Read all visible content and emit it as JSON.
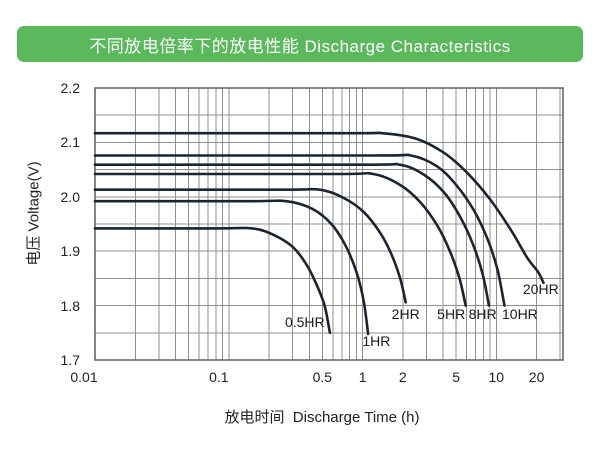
{
  "header": {
    "title": "不同放电倍率下的放电性能 Discharge Characteristics",
    "bg_color": "#5cb85c",
    "text_color": "#ffffff"
  },
  "chart_data": {
    "type": "line",
    "x_scale": "log",
    "xlabel": "放电时间  Discharge Time (h)",
    "ylabel": "电压 Voltage(V)",
    "xlim": [
      0.01,
      31.5
    ],
    "ylim": [
      1.7,
      2.2
    ],
    "y_grid_step": 0.05,
    "grid_color": "#8f8f8f",
    "border_color": "#5e5e5e",
    "curve_color": "#1c2430",
    "text_color": "#222222",
    "x_ticks": [
      {
        "label": "0.01",
        "value": 0.01,
        "dx": -11
      },
      {
        "label": "0.1",
        "value": 0.1,
        "dx": -10
      },
      {
        "label": "0.5",
        "value": 0.5,
        "dx": 0
      },
      {
        "label": "1",
        "value": 1,
        "dx": 0
      },
      {
        "label": "2",
        "value": 2,
        "dx": 0
      },
      {
        "label": "5",
        "value": 5,
        "dx": 0
      },
      {
        "label": "10",
        "value": 10,
        "dx": 0
      },
      {
        "label": "20",
        "value": 20,
        "dx": 0
      }
    ],
    "y_ticks": [
      {
        "label": "2.2",
        "value": 2.2
      },
      {
        "label": "2.1",
        "value": 2.1
      },
      {
        "label": "2.0",
        "value": 2.0
      },
      {
        "label": "1.9",
        "value": 1.9
      },
      {
        "label": "1.8",
        "value": 1.8
      },
      {
        "label": "1.7",
        "value": 1.7
      }
    ],
    "series": [
      {
        "name": "20HR",
        "points": [
          [
            0.01,
            2.117
          ],
          [
            0.8,
            2.117
          ],
          [
            1.4,
            2.117
          ],
          [
            2.5,
            2.107
          ],
          [
            4,
            2.082
          ],
          [
            6,
            2.045
          ],
          [
            9,
            1.995
          ],
          [
            13,
            1.937
          ],
          [
            17,
            1.888
          ],
          [
            20.5,
            1.862
          ],
          [
            22.5,
            1.842
          ]
        ]
      },
      {
        "name": "10HR",
        "points": [
          [
            0.01,
            2.076
          ],
          [
            1.2,
            2.076
          ],
          [
            2.3,
            2.076
          ],
          [
            3.6,
            2.056
          ],
          [
            5,
            2.022
          ],
          [
            6.8,
            1.975
          ],
          [
            8.6,
            1.922
          ],
          [
            10.2,
            1.866
          ],
          [
            11.5,
            1.8
          ]
        ]
      },
      {
        "name": "8HR",
        "points": [
          [
            0.01,
            2.059
          ],
          [
            1.0,
            2.059
          ],
          [
            1.9,
            2.059
          ],
          [
            2.9,
            2.04
          ],
          [
            4.1,
            2.007
          ],
          [
            5.4,
            1.962
          ],
          [
            6.7,
            1.912
          ],
          [
            7.9,
            1.858
          ],
          [
            8.8,
            1.8
          ]
        ]
      },
      {
        "name": "5HR",
        "points": [
          [
            0.01,
            2.042
          ],
          [
            0.6,
            2.042
          ],
          [
            1.2,
            2.042
          ],
          [
            1.9,
            2.022
          ],
          [
            2.7,
            1.99
          ],
          [
            3.6,
            1.948
          ],
          [
            4.5,
            1.9
          ],
          [
            5.3,
            1.85
          ],
          [
            5.9,
            1.8
          ]
        ]
      },
      {
        "name": "2HR",
        "points": [
          [
            0.01,
            2.013
          ],
          [
            0.25,
            2.013
          ],
          [
            0.48,
            2.013
          ],
          [
            0.72,
            1.998
          ],
          [
            1.02,
            1.972
          ],
          [
            1.36,
            1.933
          ],
          [
            1.66,
            1.892
          ],
          [
            1.92,
            1.848
          ],
          [
            2.1,
            1.806
          ]
        ]
      },
      {
        "name": "1HR",
        "points": [
          [
            0.01,
            1.992
          ],
          [
            0.14,
            1.992
          ],
          [
            0.27,
            1.992
          ],
          [
            0.42,
            1.978
          ],
          [
            0.58,
            1.951
          ],
          [
            0.74,
            1.912
          ],
          [
            0.9,
            1.862
          ],
          [
            1.02,
            1.808
          ],
          [
            1.1,
            1.748
          ]
        ]
      },
      {
        "name": "0.5HR",
        "points": [
          [
            0.01,
            1.942
          ],
          [
            0.08,
            1.942
          ],
          [
            0.15,
            1.942
          ],
          [
            0.22,
            1.929
          ],
          [
            0.3,
            1.908
          ],
          [
            0.38,
            1.876
          ],
          [
            0.45,
            1.84
          ],
          [
            0.52,
            1.8
          ],
          [
            0.57,
            1.75
          ]
        ]
      }
    ],
    "annotations": [
      {
        "label": "0.5HR",
        "t": 0.37,
        "v": 1.77
      },
      {
        "label": "1HR",
        "t": 1.27,
        "v": 1.735
      },
      {
        "label": "2HR",
        "t": 2.1,
        "v": 1.785
      },
      {
        "label": "5HR",
        "t": 4.6,
        "v": 1.785
      },
      {
        "label": "8HR",
        "t": 7.9,
        "v": 1.785
      },
      {
        "label": "10HR",
        "t": 15.0,
        "v": 1.785
      },
      {
        "label": "20HR",
        "t": 21.5,
        "v": 1.83
      }
    ]
  }
}
